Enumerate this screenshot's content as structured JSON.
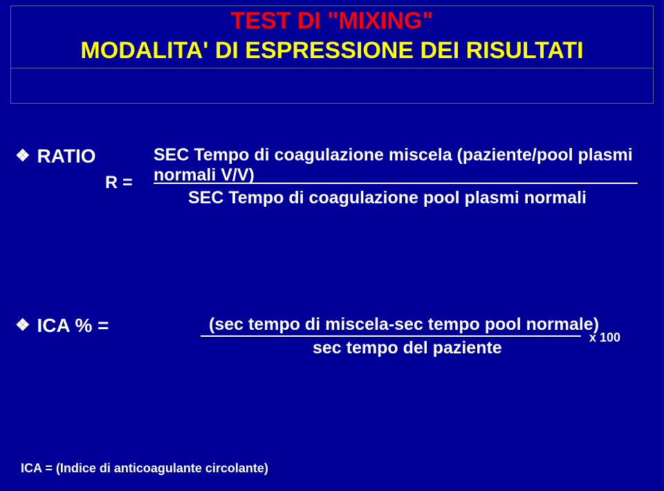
{
  "title": {
    "line1": "TEST DI \"MIXING\"",
    "line2": "MODALITA' DI ESPRESSIONE DEI RISULTATI",
    "line1_color": "#ff0000",
    "line2_color": "#ffff00",
    "fontsize": 34
  },
  "background_color": "#000099",
  "box_border_color": "#4a6aa3",
  "text_color": "#ffffff",
  "body_fontsize": 25,
  "label_fontsize": 28,
  "bullet_glyph": "❖",
  "ratio": {
    "label": "RATIO",
    "r_eq": "R =",
    "numerator": "SEC Tempo di coagulazione miscela  (paziente/pool plasmi normali V/V)",
    "denominator": "SEC  Tempo di coagulazione pool plasmi normali",
    "line_width": 700,
    "line_color": "#ffffff"
  },
  "ica": {
    "label": "ICA % =",
    "numerator": "(sec tempo di miscela-sec tempo pool normale)",
    "denominator": "sec tempo del paziente",
    "multiplier": "x 100",
    "line_width": 550,
    "line_color": "#ffffff"
  },
  "footnote": {
    "text": "ICA = (Indice di anticoagulante circolante)",
    "fontsize": 18
  }
}
